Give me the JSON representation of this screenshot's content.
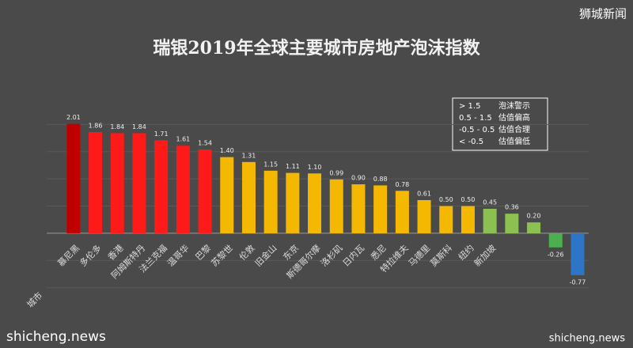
{
  "chart_data": {
    "type": "bar",
    "title": "瑞银2019年全球主要城市房地产泡沫指数",
    "x_label": "城市",
    "categories": [
      "慕尼黑",
      "多伦多",
      "香港",
      "阿姆斯特丹",
      "法兰克福",
      "温哥华",
      "巴黎",
      "苏黎世",
      "伦敦",
      "旧金山",
      "东京",
      "斯德哥尔摩",
      "洛杉矶",
      "日内瓦",
      "悉尼",
      "特拉维夫",
      "马德里",
      "莫斯科",
      "纽约",
      "新加坡",
      null,
      null,
      null,
      null
    ],
    "values": [
      2.01,
      1.86,
      1.84,
      1.84,
      1.71,
      1.61,
      1.54,
      1.4,
      1.31,
      1.15,
      1.11,
      1.1,
      0.99,
      0.9,
      0.88,
      0.78,
      0.61,
      0.5,
      0.5,
      0.45,
      0.36,
      0.2,
      -0.26,
      -0.77
    ],
    "value_labels": [
      "2.01",
      "1.86",
      "1.84",
      "1.84",
      "1.71",
      "1.61",
      "1.54",
      "1.40",
      "1.31",
      "1.15",
      "1.11",
      "1.10",
      "0.99",
      "0.90",
      "0.88",
      "0.78",
      "0.61",
      "0.50",
      "0.50",
      "0.45",
      "0.36",
      "0.20",
      "-0.26",
      "-0.77"
    ],
    "colors": [
      "#c00000",
      "#ff1a1a",
      "#ff1a1a",
      "#ff1a1a",
      "#ff1a1a",
      "#ff1a1a",
      "#ff1a1a",
      "#f5b800",
      "#f5b800",
      "#f5b800",
      "#f5b800",
      "#f5b800",
      "#f5b800",
      "#f5b800",
      "#f5b800",
      "#f5b800",
      "#f5b800",
      "#f5b800",
      "#f5b800",
      "#8cc152",
      "#8cc152",
      "#8cc152",
      "#4caf50",
      "#2e75c8"
    ],
    "ylim": [
      -1,
      2.5
    ],
    "yticks": [
      -1,
      -0.5,
      0,
      0.5,
      1,
      1.5,
      2
    ],
    "grid": true,
    "legend_box": [
      [
        "> 1.5",
        "泡沫警示"
      ],
      [
        "0.5 - 1.5",
        "估值偏高"
      ],
      [
        "-0.5 - 0.5",
        "估值合理"
      ],
      [
        "< -0.5",
        "估值偏低"
      ]
    ]
  },
  "watermarks": {
    "top_right": "狮城新闻",
    "bottom_left": "shicheng.news",
    "bottom_right": "shicheng.news"
  }
}
